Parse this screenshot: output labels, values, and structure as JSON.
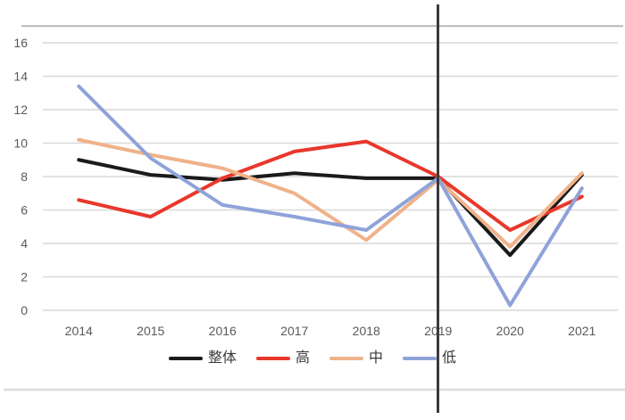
{
  "chart_data": {
    "type": "line",
    "title": "",
    "xlabel": "",
    "ylabel": "",
    "categories": [
      "2014",
      "2015",
      "2016",
      "2017",
      "2018",
      "2019",
      "2020",
      "2021"
    ],
    "series": [
      {
        "key": "overall",
        "name": "整体",
        "color": "#1a1a1a",
        "values": [
          9.0,
          8.1,
          7.8,
          8.2,
          7.9,
          7.9,
          3.3,
          8.1
        ]
      },
      {
        "key": "high",
        "name": "高",
        "color": "#e8372b",
        "values": [
          6.6,
          5.6,
          7.9,
          9.5,
          10.1,
          8.0,
          4.8,
          6.8
        ]
      },
      {
        "key": "mid",
        "name": "中",
        "color": "#efb28a",
        "values": [
          10.2,
          9.3,
          8.5,
          7.0,
          4.2,
          7.8,
          3.8,
          8.2
        ]
      },
      {
        "key": "low",
        "name": "低",
        "color": "#8fa3d9",
        "values": [
          13.4,
          9.1,
          6.3,
          5.6,
          4.8,
          7.9,
          0.3,
          7.3
        ]
      }
    ],
    "y_ticks": [
      0,
      2,
      4,
      6,
      8,
      10,
      12,
      14,
      16
    ],
    "ylim": [
      0,
      17
    ],
    "grid": true,
    "legend_position": "bottom",
    "annotation": {
      "type": "vertical-line",
      "at_category": "2019"
    }
  },
  "colors": {
    "gridline": "#d9d9d9",
    "axis_text": "#595959",
    "marker_line": "#3a3a3a",
    "top_rule": "#b9b9b9",
    "bottom_rule": "#dcdcdc",
    "background": "#ffffff"
  }
}
